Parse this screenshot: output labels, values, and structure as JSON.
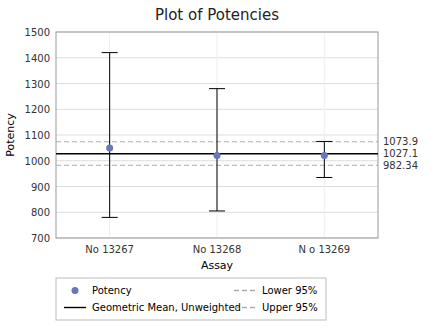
{
  "chart_data": {
    "type": "scatter",
    "title": "Plot of Potencies",
    "x_label": "Assay",
    "y_label": "Potency",
    "categories": [
      "No 13267",
      "No 13268",
      "N o 13269"
    ],
    "series": [
      {
        "name": "Potency",
        "color": "#6677bb",
        "marker": "circle",
        "values": [
          1050,
          1020,
          1020
        ],
        "upper_95": [
          1420,
          1280,
          1075
        ],
        "lower_95": [
          780,
          805,
          935
        ]
      }
    ],
    "reference_lines": [
      {
        "name": "Geometric Mean, Unweighted",
        "value": 1027.1,
        "label": "1027.1",
        "color": "#000000",
        "line_style": "solid"
      },
      {
        "name": "Lower 95%",
        "value": 982.34,
        "label": "982.34",
        "color": "#aaaaaa",
        "line_style": "dashed"
      },
      {
        "name": "Upper 95%",
        "value": 1073.9,
        "label": "1073.9",
        "color": "#aaaaaa",
        "line_style": "dashed"
      }
    ],
    "ylim": [
      700,
      1500
    ],
    "yticks": [
      700,
      800,
      900,
      1000,
      1100,
      1200,
      1300,
      1400,
      1500
    ],
    "grid": true,
    "legend": "bottom"
  }
}
